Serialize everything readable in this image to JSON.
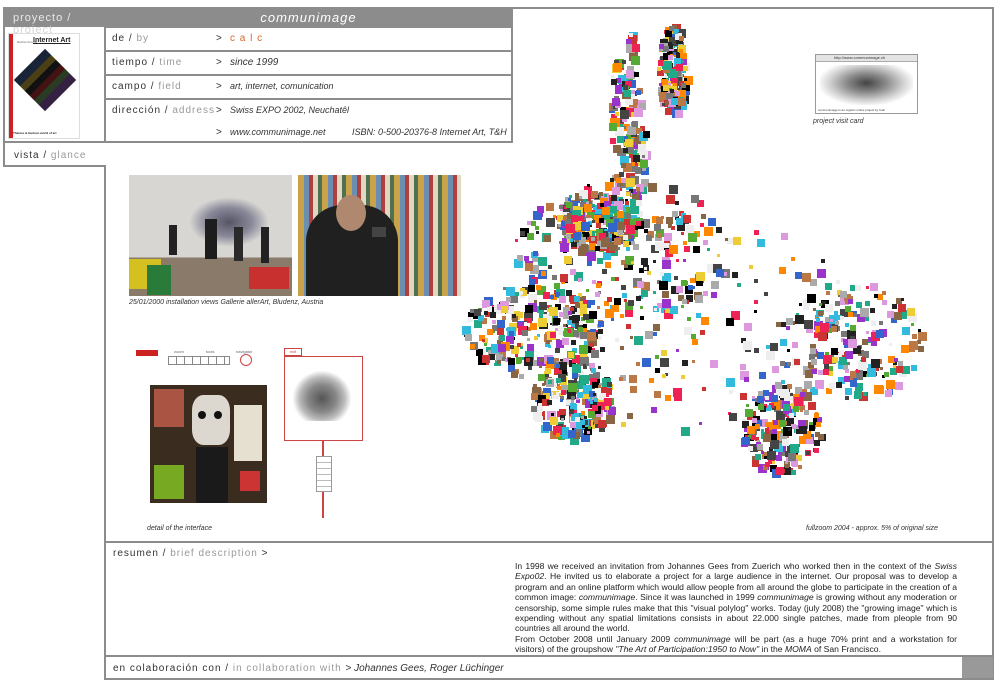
{
  "header": {
    "project_es": "proyecto",
    "project_sep": "/",
    "project_en": "project",
    "title": "communimage"
  },
  "book": {
    "small_text": "Rachel Greene",
    "title": "Internet Art",
    "publisher": "Thames & Hudson world of art"
  },
  "details": [
    {
      "label_es": "de",
      "label_en": "by",
      "value": "c a l c"
    },
    {
      "label_es": "tiempo",
      "label_en": "time",
      "value": "since 1999"
    },
    {
      "label_es": "campo",
      "label_en": "field",
      "value": "art, internet, comunication"
    },
    {
      "label_es": "dirección",
      "label_en": "address",
      "value": "Swiss EXPO 2002, Neuchatêl"
    }
  ],
  "extra_row": {
    "url": "www.communimage.net",
    "isbn": "ISBN: 0-500-20376-8 Internet Art, T&H"
  },
  "separator": ">",
  "vista": {
    "es": "vista",
    "en": "glance"
  },
  "captions": {
    "installation": "25/01/2000 installation views Gallerie allerArt, Bludenz, Austria",
    "interface": "detail of the interface",
    "fullzoom": "fullzoom 2004 - approx. 5% of original size",
    "visit_card": "project visit card"
  },
  "visit_card": {
    "url": "http://www.communimage.ch",
    "footer": "communimage is an organic online project by Calc"
  },
  "summary": {
    "label_es": "resumen",
    "label_en": "brief description",
    "p1_a": "In 1998 we received an invitation from Johannes Gees from Zuerich who worked then in the context of the ",
    "p1_em1": "Swiss Expo02",
    "p1_b": ". He invited us to elaborate a project for a large audience in the internet. Our proposal was to develop a program and an online platform which would allow people from all around the globe to participate in the creation of a common image: ",
    "p1_em2": "communimage",
    "p1_c": ". Since it was launched in 1999 ",
    "p1_em3": "communimage",
    "p1_d": " is growing without any moderation or censorship, some simple rules make that this \"visual polylog\" works. Today (july 2008) the \"growing image\" which is expending without any spatial limitations consists in about 22.000 single patches, made from pleople from 90 countries all around the world.",
    "p2_a": "From October 2008 until January 2009 ",
    "p2_em1": "communimage",
    "p2_b": " will be part (as a huge 70% print and a workstation for visitors) of the groupshow ",
    "p2_em2": "\"The Art of Participation:1950 to Now\"",
    "p2_c": " in the ",
    "p2_em3": "MOMA",
    "p2_d": " of San Francisco."
  },
  "collab": {
    "label_es": "en colaboración con",
    "label_en": "in collaboration with",
    "names": "Johannes Gees, Roger Lüchinger"
  },
  "interface_tools": {
    "zoom": "zoom",
    "tools": "tools",
    "navigator": "navigator",
    "button": "exit"
  },
  "colors": {
    "frame": "#8c8c8c",
    "accent_orange": "#d9662b",
    "accent_red": "#cc2222"
  }
}
